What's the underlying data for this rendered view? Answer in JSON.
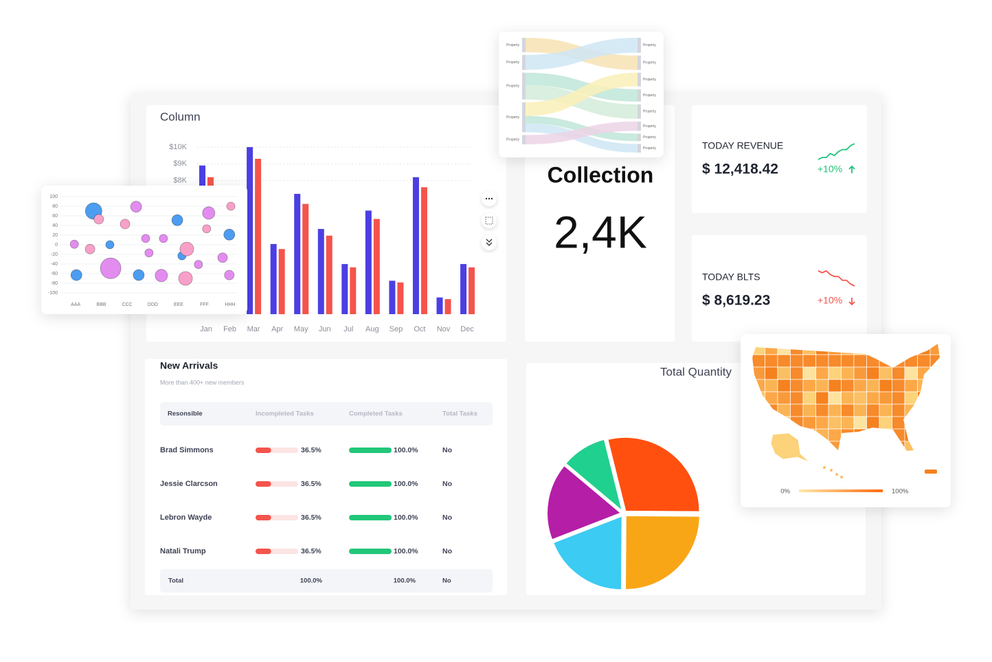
{
  "chart_data": [
    {
      "type": "bar",
      "title": "Column",
      "categories": [
        "Jan",
        "Feb",
        "Mar",
        "Apr",
        "May",
        "Jun",
        "Jul",
        "Aug",
        "Sep",
        "Oct",
        "Nov",
        "Dec"
      ],
      "series": [
        {
          "color": "#4b3fe3",
          "values": [
            8900,
            null,
            10000,
            4200,
            7200,
            5100,
            3000,
            6200,
            2000,
            8200,
            1000,
            3000
          ]
        },
        {
          "color": "#f4544c",
          "values": [
            8200,
            null,
            9300,
            3900,
            6600,
            4700,
            2800,
            5700,
            1900,
            7600,
            900,
            2800
          ]
        }
      ],
      "ylim": [
        0,
        10000
      ],
      "yticks": [
        {
          "value": 8000,
          "label": "$8K"
        },
        {
          "value": 9000,
          "label": "$9K"
        },
        {
          "value": 10000,
          "label": "$10K"
        }
      ],
      "grid": true
    },
    {
      "type": "sankey",
      "sources": [
        "Property",
        "Property",
        "Property",
        "Property",
        "Property"
      ],
      "targets": [
        "Property",
        "Property",
        "Property",
        "Property",
        "Property",
        "Property",
        "Property",
        "Property"
      ],
      "node_color": "#d3d6dd",
      "links": [
        {
          "source": 0,
          "target": 1,
          "value": 23,
          "color": "#f7e2b4"
        },
        {
          "source": 1,
          "target": 0,
          "value": 24,
          "color": "#cfe6f5"
        },
        {
          "source": 2,
          "target": 3,
          "value": 20,
          "color": "#bfe6d8"
        },
        {
          "source": 2,
          "target": 4,
          "value": 23,
          "color": "#d4ecd9"
        },
        {
          "source": 3,
          "target": 2,
          "value": 22,
          "color": "#faf0b8"
        },
        {
          "source": 3,
          "target": 6,
          "value": 12,
          "color": "#bfe6d8"
        },
        {
          "source": 3,
          "target": 7,
          "value": 14,
          "color": "#cfe6f5"
        },
        {
          "source": 4,
          "target": 5,
          "value": 15,
          "color": "#ecd3e6"
        }
      ]
    },
    {
      "type": "bubble",
      "categories": [
        "AAA",
        "BBB",
        "CCC",
        "DDD",
        "EEE",
        "FFF",
        "HHH"
      ],
      "xlim": [
        -0.59,
        6.27
      ],
      "ylim": [
        -100,
        100
      ],
      "yticks": [
        100,
        80,
        60,
        40,
        20,
        0,
        -20,
        -40,
        -60,
        -80,
        -100
      ],
      "grid": true,
      "series": [
        {
          "color": "#4c9cf0",
          "x": [
            0.7,
            1.33,
            3.95,
            5.97,
            0.03,
            2.45,
            4.13
          ],
          "y": [
            70,
            0,
            51,
            21,
            -63,
            -63,
            -23
          ],
          "size": [
            12,
            6,
            8,
            8,
            8,
            8,
            6
          ]
        },
        {
          "color": "#f9a0c8",
          "x": [
            0.9,
            1.92,
            5.09,
            0.56,
            4.32,
            4.27,
            6.03
          ],
          "y": [
            53,
            43,
            33,
            -9,
            -9,
            -70,
            80
          ],
          "size": [
            7,
            7,
            6,
            7,
            10,
            10,
            6
          ]
        },
        {
          "color": "#e38cf0",
          "x": [
            2.35,
            5.17,
            -0.05,
            2.72,
            3.41,
            2.85,
            1.36,
            3.33,
            4.77,
            5.71,
            5.97
          ],
          "y": [
            79,
            66,
            1,
            13,
            13,
            -17,
            -49,
            -64,
            -41,
            -27,
            -63
          ],
          "size": [
            8,
            9,
            6,
            6,
            6,
            6,
            15,
            9,
            6,
            7,
            7
          ]
        }
      ]
    },
    {
      "type": "pie",
      "title": "Total Quantity",
      "values": [
        29,
        25,
        19,
        17,
        10
      ],
      "colors": [
        "#ff5010",
        "#f9a616",
        "#3ccbf2",
        "#b51ea6",
        "#20d08e"
      ]
    },
    {
      "type": "choropleth",
      "colorbar": {
        "ticks": [
          {
            "value": 0,
            "label": "0%"
          },
          {
            "value": 100,
            "label": "100%"
          }
        ],
        "colors": [
          "#fde9a8",
          "#ff6a10"
        ]
      }
    }
  ],
  "collection": {
    "title": "Collection",
    "value": "2,4K"
  },
  "kpis": [
    {
      "label": "TODAY REVENUE",
      "value": "$ 12,418.42",
      "change": "+10%",
      "color": "#1ec27a",
      "trend": [
        1,
        2,
        2,
        4,
        3,
        5,
        6,
        6,
        8,
        9
      ]
    },
    {
      "label": "TODAY BLTS",
      "value": "$ 8,619.23",
      "change": "+10%",
      "color": "#f4544c",
      "trend": [
        9,
        8,
        9,
        7,
        6,
        6,
        4,
        4,
        2,
        1
      ]
    }
  ],
  "table": {
    "title": "New Arrivals",
    "subtitle": "More than 400+ new members",
    "columns": [
      "Resonsible",
      "Incompleted Tasks",
      "Completed Tasks",
      "Total Tasks"
    ],
    "rows": [
      {
        "name": "Brad Simmons",
        "incompleted": 36.5,
        "incompleted_label": "36.5%",
        "completed": 100.0,
        "completed_label": "100.0%",
        "total": "No"
      },
      {
        "name": "Jessie Clarcson",
        "incompleted": 36.5,
        "incompleted_label": "36.5%",
        "completed": 100.0,
        "completed_label": "100.0%",
        "total": "No"
      },
      {
        "name": "Lebron Wayde",
        "incompleted": 36.5,
        "incompleted_label": "36.5%",
        "completed": 100.0,
        "completed_label": "100.0%",
        "total": "No"
      },
      {
        "name": "Natali Trump",
        "incompleted": 36.5,
        "incompleted_label": "36.5%",
        "completed": 100.0,
        "completed_label": "100.0%",
        "total": "No"
      }
    ],
    "footer": [
      "Total",
      "100.0%",
      "100.0%",
      "No"
    ]
  }
}
